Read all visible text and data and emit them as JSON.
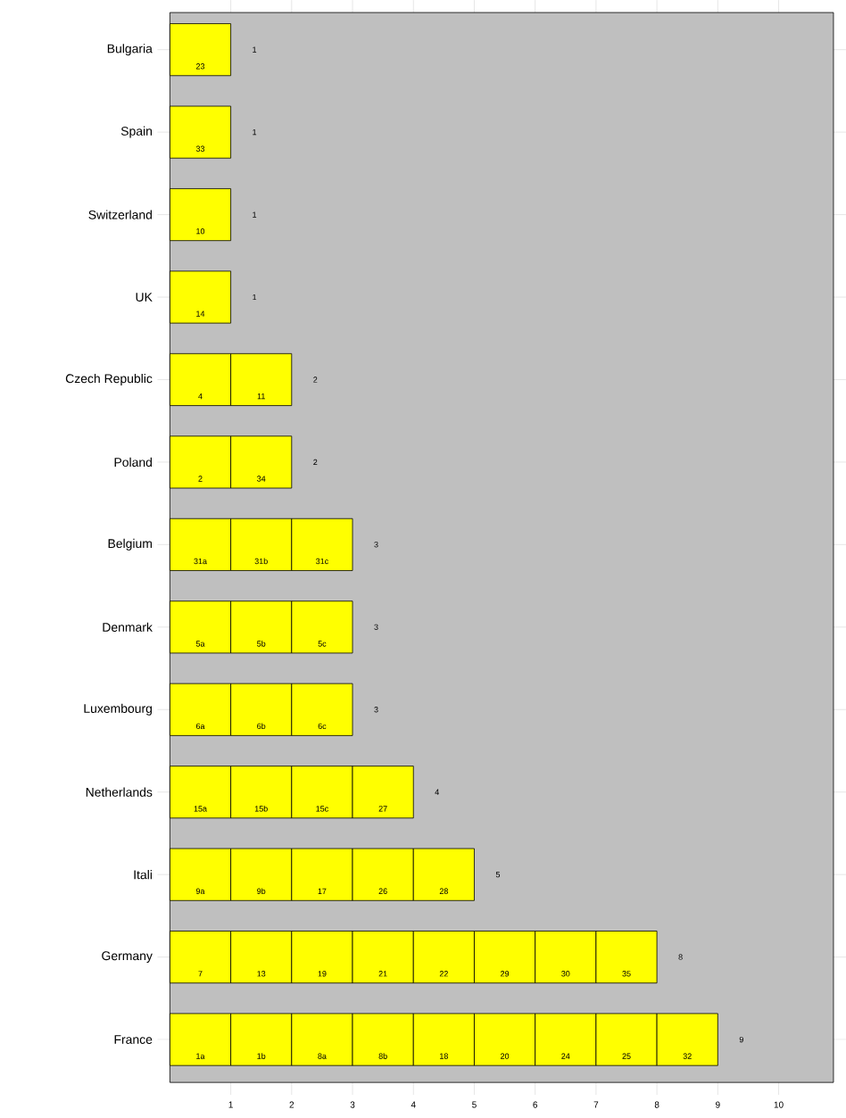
{
  "chart_data": {
    "type": "bar",
    "orientation": "horizontal",
    "stacked": true,
    "categories": [
      "Bulgaria",
      "Spain",
      "Switzerland",
      "UK",
      "Czech Republic",
      "Poland",
      "Belgium",
      "Denmark",
      "Luxembourg",
      "Netherlands",
      "Itali",
      "Germany",
      "France"
    ],
    "series": [
      {
        "color": "#ffff00",
        "values": [
          1,
          1,
          1,
          1,
          1,
          1,
          1,
          1,
          1,
          1,
          1,
          1,
          1
        ]
      },
      {
        "color": "#ffff00",
        "values": [
          null,
          null,
          null,
          null,
          1,
          1,
          1,
          1,
          1,
          1,
          1,
          1,
          1
        ]
      },
      {
        "color": "#ffff00",
        "values": [
          null,
          null,
          null,
          null,
          null,
          null,
          1,
          1,
          1,
          1,
          1,
          1,
          1
        ]
      },
      {
        "color": "#ffff00",
        "values": [
          null,
          null,
          null,
          null,
          null,
          null,
          null,
          null,
          null,
          1,
          1,
          1,
          1
        ]
      },
      {
        "color": "#ffff00",
        "values": [
          null,
          null,
          null,
          null,
          null,
          null,
          null,
          null,
          null,
          null,
          1,
          1,
          1
        ]
      },
      {
        "color": "#ffff00",
        "values": [
          null,
          null,
          null,
          null,
          null,
          null,
          null,
          null,
          null,
          null,
          null,
          1,
          1
        ]
      },
      {
        "color": "#ffff00",
        "values": [
          null,
          null,
          null,
          null,
          null,
          null,
          null,
          null,
          null,
          null,
          null,
          1,
          1
        ]
      },
      {
        "color": "#ffff00",
        "values": [
          null,
          null,
          null,
          null,
          null,
          null,
          null,
          null,
          null,
          null,
          null,
          1,
          1
        ]
      },
      {
        "color": "#ffff00",
        "values": [
          null,
          null,
          null,
          null,
          null,
          null,
          null,
          null,
          null,
          null,
          null,
          null,
          1
        ]
      }
    ],
    "annotations": [
      "23",
      "33",
      "10",
      "14",
      "4",
      "11",
      "2",
      "34",
      "31a",
      "31b",
      "31c",
      "5a",
      "5b",
      "5c",
      "6a",
      "6b",
      "6c",
      "15a",
      "15b",
      "15c",
      "27",
      "9a",
      "9b",
      "17",
      "26",
      "28",
      "7",
      "13",
      "19",
      "21",
      "22",
      "29",
      "30",
      "35",
      "1a",
      "1b",
      "8a",
      "8b",
      "18",
      "20",
      "24",
      "25",
      "32"
    ],
    "totals": [
      "1",
      "1",
      "1",
      "1",
      "2",
      "2",
      "3",
      "3",
      "3",
      "4",
      "5",
      "8",
      "9"
    ],
    "xlim": [
      0,
      10.9
    ],
    "xticks": [
      1,
      2,
      3,
      4,
      5,
      6,
      7,
      8,
      9,
      10
    ]
  }
}
